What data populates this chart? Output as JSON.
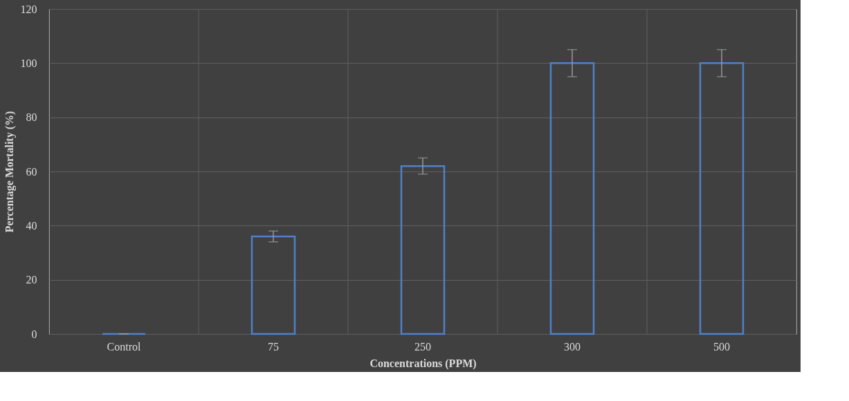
{
  "chart_data": {
    "type": "bar",
    "xlabel": "Concentrations (PPM)",
    "ylabel": "Percentage Mortality (%)",
    "categories": [
      "Control",
      "75",
      "250",
      "300",
      "500"
    ],
    "values": [
      0,
      36,
      62,
      100,
      100
    ],
    "errors": [
      0,
      2,
      3,
      5,
      5
    ],
    "color": "#4f81c9",
    "ylim": [
      0,
      120
    ],
    "yticks": [
      0,
      20,
      40,
      60,
      80,
      100,
      120
    ],
    "grid": true
  }
}
